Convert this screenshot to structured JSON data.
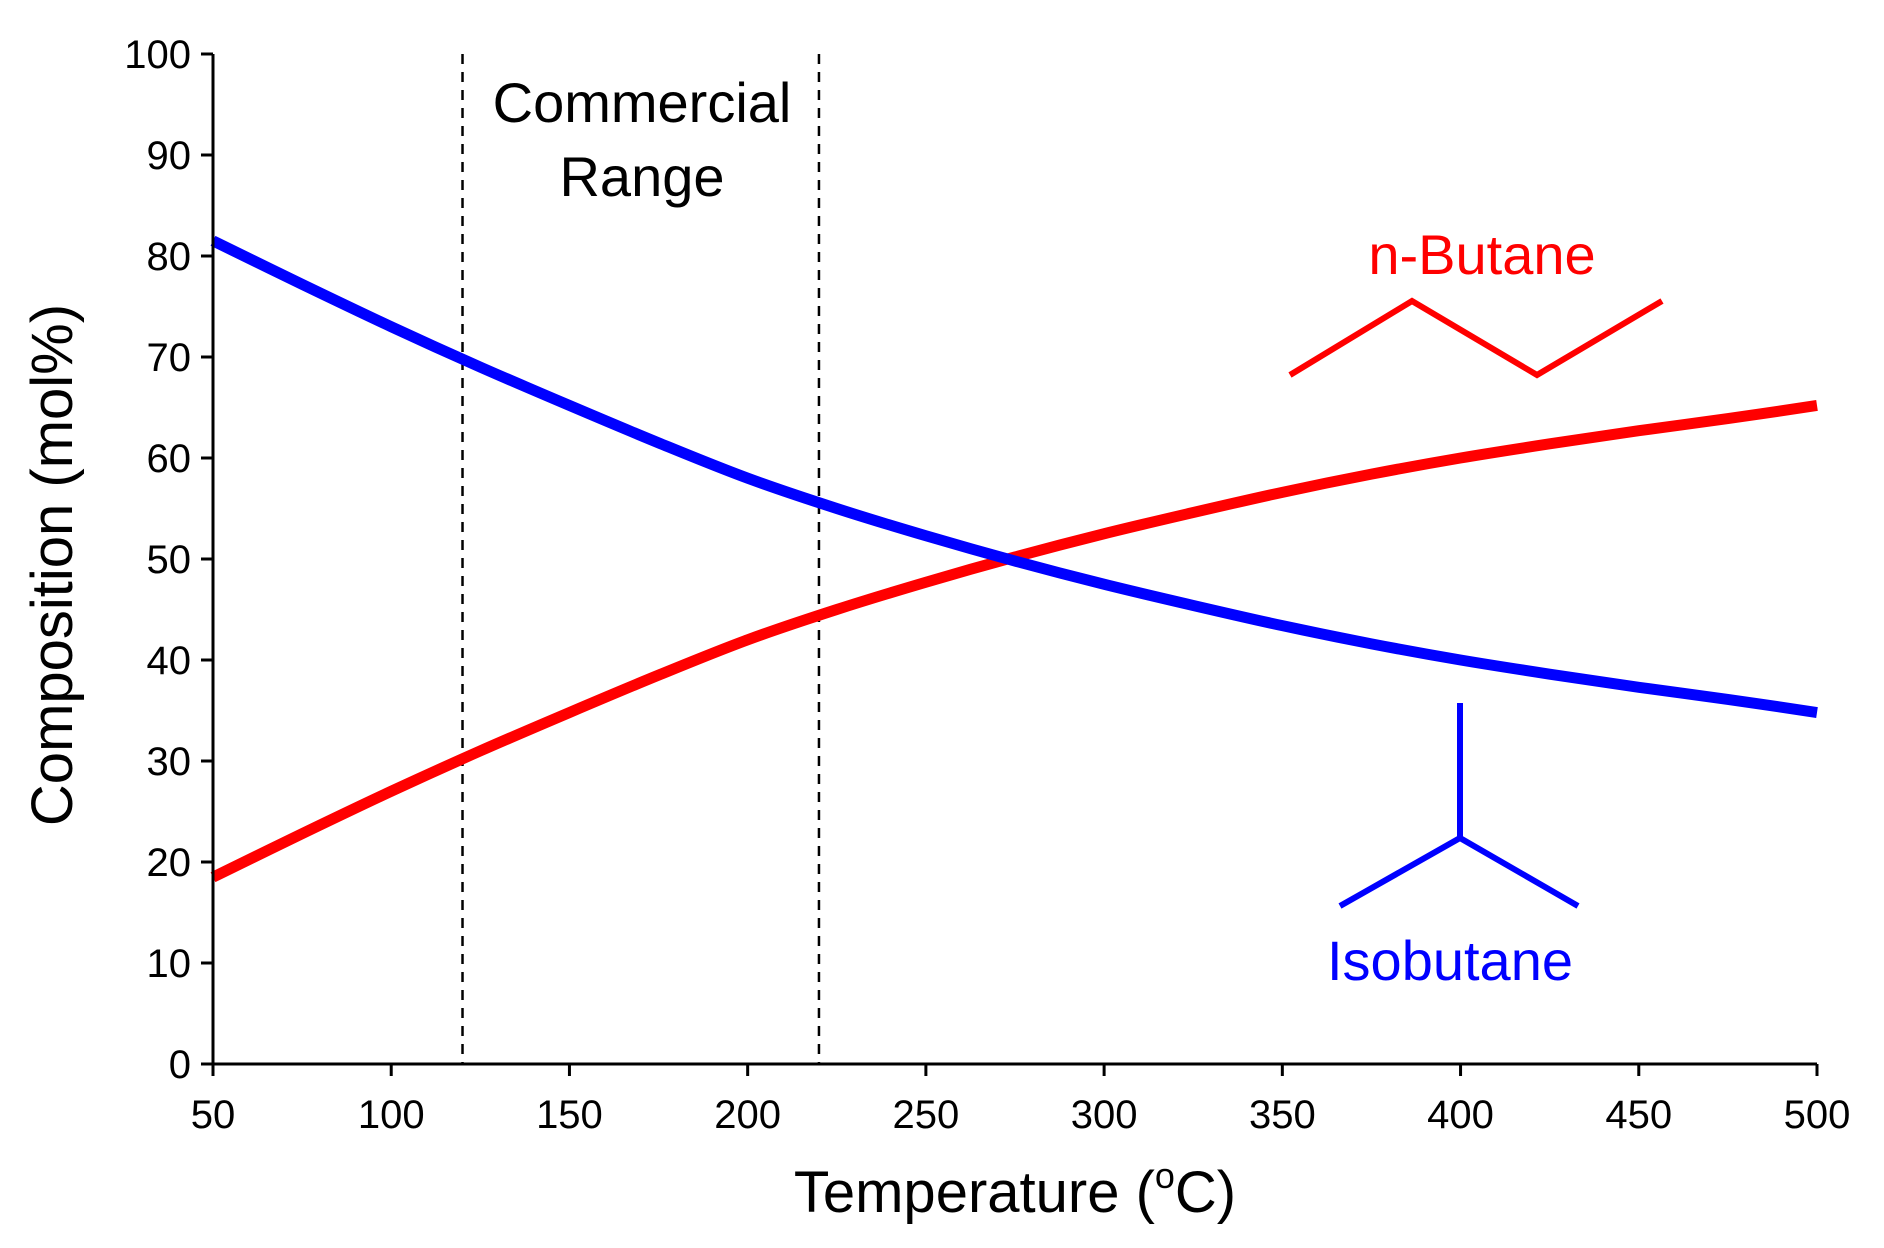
{
  "chart_data": {
    "type": "line",
    "title": "",
    "xlabel": "Temperature (",
    "xlabel_sup": "o",
    "xlabel_unit": "C)",
    "ylabel": "Composition (mol%)",
    "xlim": [
      50,
      500
    ],
    "ylim": [
      0,
      100
    ],
    "xticks": [
      50,
      100,
      150,
      200,
      250,
      300,
      350,
      400,
      450,
      500
    ],
    "yticks": [
      0,
      10,
      20,
      30,
      40,
      50,
      60,
      70,
      80,
      90,
      100
    ],
    "grid": false,
    "series": [
      {
        "name": "n-Butane",
        "color": "#ff0000",
        "x": [
          50,
          75,
          100,
          125,
          150,
          175,
          200,
          225,
          250,
          275,
          300,
          325,
          350,
          375,
          400,
          425,
          450,
          475,
          500
        ],
        "y": [
          18.5,
          22.8,
          27.0,
          31.0,
          34.8,
          38.5,
          42.0,
          45.0,
          47.7,
          50.2,
          52.5,
          54.6,
          56.6,
          58.4,
          60.0,
          61.4,
          62.7,
          63.9,
          65.2
        ]
      },
      {
        "name": "Isobutane",
        "color": "#0000ff",
        "x": [
          50,
          75,
          100,
          125,
          150,
          175,
          200,
          225,
          250,
          275,
          300,
          325,
          350,
          375,
          400,
          425,
          450,
          475,
          500
        ],
        "y": [
          81.5,
          77.2,
          73.0,
          69.0,
          65.2,
          61.5,
          58.0,
          55.0,
          52.3,
          49.8,
          47.5,
          45.4,
          43.4,
          41.6,
          40.0,
          38.6,
          37.3,
          36.1,
          34.8
        ]
      }
    ],
    "reference_lines": [
      {
        "x": 120,
        "style": "dashed"
      },
      {
        "x": 220,
        "style": "dashed"
      }
    ],
    "annotations": {
      "commercial_range": {
        "line1": "Commercial",
        "line2": "Range"
      },
      "n_butane_label": "n-Butane",
      "isobutane_label": "Isobutane"
    }
  }
}
